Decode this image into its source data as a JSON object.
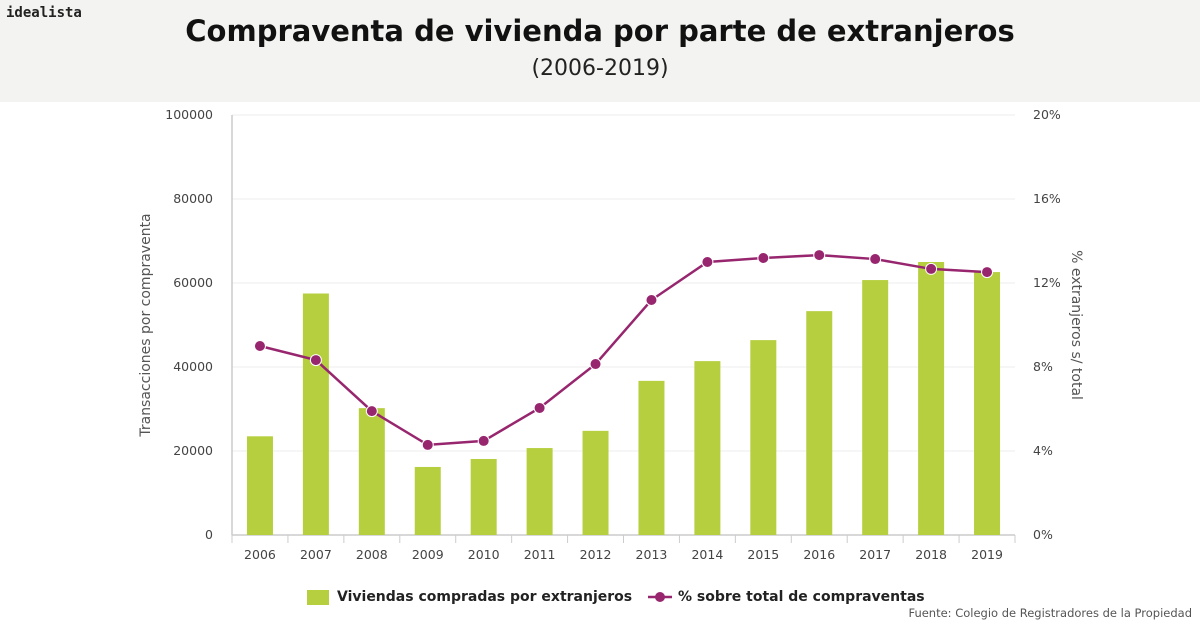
{
  "header": {
    "logo": "idealista",
    "title": "Compraventa de vivienda por parte de extranjeros",
    "subtitle": "(2006-2019)"
  },
  "source": "Fuente: Colegio de Registradores de la Propiedad",
  "colors": {
    "bar": "#b6cf3f",
    "line": "#97266f",
    "header_bg": "#f3f3f1"
  },
  "chart_data": {
    "type": "bar+line",
    "categories": [
      "2006",
      "2007",
      "2008",
      "2009",
      "2010",
      "2011",
      "2012",
      "2013",
      "2014",
      "2015",
      "2016",
      "2017",
      "2018",
      "2019"
    ],
    "series": [
      {
        "name": "Viviendas compradas por extranjeros",
        "type": "bar",
        "axis": "left",
        "values": [
          23500,
          57500,
          30200,
          16200,
          18100,
          20700,
          24800,
          36700,
          41400,
          46400,
          53300,
          60700,
          65000,
          62600
        ]
      },
      {
        "name": "% sobre total de compraventas",
        "type": "line",
        "axis": "right",
        "values": [
          9.0,
          8.33,
          5.9,
          4.29,
          4.48,
          6.05,
          8.14,
          11.19,
          13.0,
          13.19,
          13.33,
          13.14,
          12.67,
          12.52
        ]
      }
    ],
    "ylabel": "Transacciones por compraventa",
    "y2label": "% extranjeros s/ total",
    "ylim": [
      0,
      100000
    ],
    "y2lim": [
      0,
      20
    ],
    "yticks": [
      "0",
      "20000",
      "40000",
      "60000",
      "80000",
      "100000"
    ],
    "y2ticks": [
      "0%",
      "4%",
      "8%",
      "12%",
      "16%",
      "20%"
    ],
    "grid": true,
    "legend_position": "bottom"
  }
}
